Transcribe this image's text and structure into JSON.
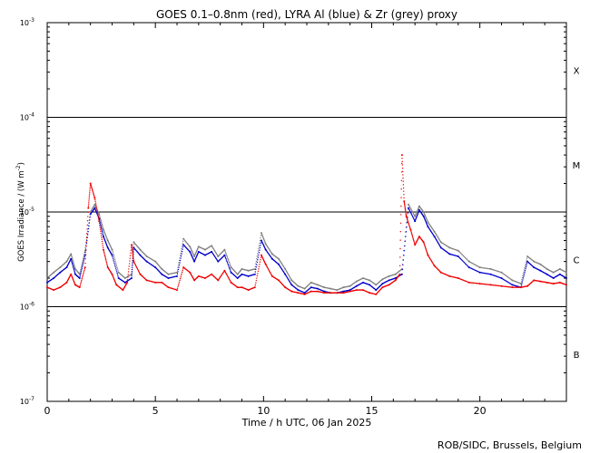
{
  "chart_data": {
    "type": "scatter",
    "title": "GOES 0.1–0.8nm (red), LYRA Al (blue) & Zr (grey) proxy",
    "xlabel": "Time / h UTC, 06 Jan 2025",
    "ylabel": "GOES Irradiance / (W m",
    "ylabel_sup": "-2",
    "ylabel_end": ")",
    "credit": "ROB/SIDC, Brussels, Belgium",
    "xlim": [
      0,
      24
    ],
    "ylim": [
      1e-07,
      0.001
    ],
    "yscale": "log",
    "x_ticks": [
      0,
      5,
      10,
      15,
      20
    ],
    "x_tick_labels": [
      "0",
      "5",
      "10",
      "15",
      "20"
    ],
    "y_ticks": [
      {
        "value": 0.001,
        "base": "10",
        "exp": "-3"
      },
      {
        "value": 0.0001,
        "base": "10",
        "exp": "-4"
      },
      {
        "value": 1e-05,
        "base": "10",
        "exp": "-5"
      },
      {
        "value": 1e-06,
        "base": "10",
        "exp": "-6"
      },
      {
        "value": 1e-07,
        "base": "10",
        "exp": "-7"
      }
    ],
    "class_lines": [
      1e-06,
      1e-05,
      0.0001
    ],
    "flare_classes": [
      {
        "label": "X",
        "value": 0.000316
      },
      {
        "label": "M",
        "value": 3.16e-05
      },
      {
        "label": "C",
        "value": 3.16e-06
      },
      {
        "label": "B",
        "value": 3.16e-07
      }
    ],
    "colors": {
      "goes": "#ee0000",
      "lyra_al": "#0000cc",
      "lyra_zr": "#808080"
    },
    "series": [
      {
        "color": "red",
        "x": [
          0,
          0.3,
          0.6,
          0.9,
          1.1,
          1.3,
          1.5,
          1.75,
          1.9,
          2.0,
          2.2,
          2.4,
          2.6,
          2.8,
          3.0,
          3.2,
          3.5,
          3.7,
          3.9,
          4.0,
          4.3,
          4.6,
          5.0,
          5.3,
          5.6,
          6.0,
          6.3,
          6.6,
          6.8,
          7.0,
          7.3,
          7.6,
          7.9,
          8.2,
          8.5,
          8.8,
          9.0,
          9.3,
          9.6,
          9.9,
          10.1,
          10.4,
          10.7,
          11.0,
          11.3,
          11.6,
          11.9,
          12.2,
          12.5,
          12.8,
          13.1,
          13.4,
          13.7,
          14.0,
          14.3,
          14.6,
          14.9,
          15.2,
          15.5,
          15.8,
          16.1,
          16.3,
          16.4,
          16.5,
          16.6,
          16.8,
          17.0,
          17.2,
          17.4,
          17.6,
          17.9,
          18.2,
          18.6,
          19.0,
          19.5,
          20.0,
          20.5,
          21.0,
          21.5,
          21.9,
          22.2,
          22.5,
          22.8,
          23.1,
          23.4,
          23.7,
          24.0
        ],
        "y": [
          1.6e-06,
          1.5e-06,
          1.6e-06,
          1.8e-06,
          2.2e-06,
          1.7e-06,
          1.6e-06,
          2.6e-06,
          1.1e-05,
          2e-05,
          1.4e-05,
          8e-06,
          4e-06,
          2.6e-06,
          2.2e-06,
          1.7e-06,
          1.5e-06,
          1.8e-06,
          4.5e-06,
          3e-06,
          2.2e-06,
          1.9e-06,
          1.8e-06,
          1.8e-06,
          1.6e-06,
          1.5e-06,
          2.6e-06,
          2.3e-06,
          1.9e-06,
          2.1e-06,
          2e-06,
          2.2e-06,
          1.9e-06,
          2.4e-06,
          1.8e-06,
          1.6e-06,
          1.6e-06,
          1.5e-06,
          1.6e-06,
          3.5e-06,
          2.8e-06,
          2.1e-06,
          1.9e-06,
          1.6e-06,
          1.45e-06,
          1.4e-06,
          1.35e-06,
          1.45e-06,
          1.45e-06,
          1.4e-06,
          1.4e-06,
          1.4e-06,
          1.4e-06,
          1.45e-06,
          1.5e-06,
          1.5e-06,
          1.4e-06,
          1.35e-06,
          1.6e-06,
          1.7e-06,
          1.9e-06,
          2.2e-06,
          4e-05,
          1.3e-05,
          9e-06,
          6.5e-06,
          4.5e-06,
          5.5e-06,
          4.8e-06,
          3.5e-06,
          2.7e-06,
          2.3e-06,
          2.1e-06,
          2e-06,
          1.8e-06,
          1.75e-06,
          1.7e-06,
          1.65e-06,
          1.6e-06,
          1.6e-06,
          1.65e-06,
          1.9e-06,
          1.85e-06,
          1.8e-06,
          1.75e-06,
          1.8e-06,
          1.7e-06
        ]
      },
      {
        "color": "blue",
        "x": [
          0,
          0.3,
          0.6,
          0.9,
          1.1,
          1.3,
          1.5,
          1.75,
          2.0,
          2.2,
          2.4,
          2.6,
          2.8,
          3.0,
          3.3,
          3.6,
          3.9,
          4.0,
          4.3,
          4.6,
          5.0,
          5.3,
          5.6,
          6.0,
          6.3,
          6.6,
          6.8,
          7.0,
          7.3,
          7.6,
          7.9,
          8.2,
          8.5,
          8.8,
          9.0,
          9.3,
          9.6,
          9.9,
          10.1,
          10.4,
          10.7,
          11.0,
          11.3,
          11.6,
          11.9,
          12.2,
          12.5,
          12.8,
          13.1,
          13.4,
          13.7,
          14.0,
          14.3,
          14.6,
          14.9,
          15.2,
          15.5,
          15.8,
          16.1,
          16.4,
          16.7,
          17.0,
          17.2,
          17.4,
          17.6,
          17.9,
          18.2,
          18.6,
          19.0,
          19.5,
          20.0,
          20.5,
          21.0,
          21.5,
          21.9,
          22.2,
          22.5,
          22.8,
          23.1,
          23.4,
          23.7,
          24.0
        ],
        "y": [
          1.8e-06,
          2e-06,
          2.3e-06,
          2.6e-06,
          3.2e-06,
          2.2e-06,
          2e-06,
          3.5e-06,
          9.5e-06,
          1.1e-05,
          8.5e-06,
          5.5e-06,
          4.2e-06,
          3.5e-06,
          2e-06,
          1.8e-06,
          2e-06,
          4.2e-06,
          3.5e-06,
          3e-06,
          2.6e-06,
          2.2e-06,
          2e-06,
          2.1e-06,
          4.5e-06,
          3.8e-06,
          3e-06,
          3.8e-06,
          3.5e-06,
          3.8e-06,
          3e-06,
          3.5e-06,
          2.3e-06,
          2e-06,
          2.2e-06,
          2.1e-06,
          2.2e-06,
          5e-06,
          4e-06,
          3.2e-06,
          2.8e-06,
          2.2e-06,
          1.7e-06,
          1.5e-06,
          1.4e-06,
          1.6e-06,
          1.55e-06,
          1.45e-06,
          1.4e-06,
          1.4e-06,
          1.45e-06,
          1.5e-06,
          1.65e-06,
          1.8e-06,
          1.7e-06,
          1.5e-06,
          1.75e-06,
          1.9e-06,
          2e-06,
          2.2e-06,
          1.1e-05,
          8e-06,
          1.05e-05,
          9e-06,
          7e-06,
          5.5e-06,
          4.2e-06,
          3.6e-06,
          3.4e-06,
          2.6e-06,
          2.3e-06,
          2.2e-06,
          2e-06,
          1.7e-06,
          1.6e-06,
          3e-06,
          2.6e-06,
          2.4e-06,
          2.2e-06,
          2e-06,
          2.2e-06,
          2e-06
        ]
      },
      {
        "color": "grey",
        "x": [
          0,
          0.3,
          0.6,
          0.9,
          1.1,
          1.3,
          1.5,
          1.75,
          2.0,
          2.2,
          2.4,
          2.6,
          2.8,
          3.0,
          3.3,
          3.6,
          3.9,
          4.0,
          4.3,
          4.6,
          5.0,
          5.3,
          5.6,
          6.0,
          6.3,
          6.6,
          6.8,
          7.0,
          7.3,
          7.6,
          7.9,
          8.2,
          8.5,
          8.8,
          9.0,
          9.3,
          9.6,
          9.9,
          10.1,
          10.4,
          10.7,
          11.0,
          11.3,
          11.6,
          11.9,
          12.2,
          12.5,
          12.8,
          13.1,
          13.4,
          13.7,
          14.0,
          14.3,
          14.6,
          14.9,
          15.2,
          15.5,
          15.8,
          16.1,
          16.4,
          16.7,
          17.0,
          17.2,
          17.4,
          17.6,
          17.9,
          18.2,
          18.6,
          19.0,
          19.5,
          20.0,
          20.5,
          21.0,
          21.5,
          21.9,
          22.2,
          22.5,
          22.8,
          23.1,
          23.4,
          23.7,
          24.0
        ],
        "y": [
          2e-06,
          2.3e-06,
          2.6e-06,
          3e-06,
          3.6e-06,
          2.5e-06,
          2.2e-06,
          3.9e-06,
          1e-05,
          1.2e-05,
          9.5e-06,
          6.5e-06,
          5e-06,
          4e-06,
          2.3e-06,
          2e-06,
          2.2e-06,
          4.8e-06,
          4e-06,
          3.4e-06,
          3e-06,
          2.5e-06,
          2.2e-06,
          2.3e-06,
          5.2e-06,
          4.3e-06,
          3.4e-06,
          4.3e-06,
          4e-06,
          4.4e-06,
          3.4e-06,
          4e-06,
          2.6e-06,
          2.2e-06,
          2.5e-06,
          2.4e-06,
          2.5e-06,
          6e-06,
          4.6e-06,
          3.6e-06,
          3.2e-06,
          2.5e-06,
          1.9e-06,
          1.65e-06,
          1.55e-06,
          1.8e-06,
          1.7e-06,
          1.6e-06,
          1.55e-06,
          1.5e-06,
          1.6e-06,
          1.65e-06,
          1.85e-06,
          2e-06,
          1.9e-06,
          1.7e-06,
          1.95e-06,
          2.1e-06,
          2.2e-06,
          2.5e-06,
          1.2e-05,
          9e-06,
          1.15e-05,
          1e-05,
          7.8e-06,
          6.2e-06,
          4.8e-06,
          4.2e-06,
          3.9e-06,
          3e-06,
          2.6e-06,
          2.5e-06,
          2.3e-06,
          1.9e-06,
          1.75e-06,
          3.4e-06,
          3e-06,
          2.8e-06,
          2.5e-06,
          2.3e-06,
          2.5e-06,
          2.3e-06
        ]
      }
    ]
  }
}
